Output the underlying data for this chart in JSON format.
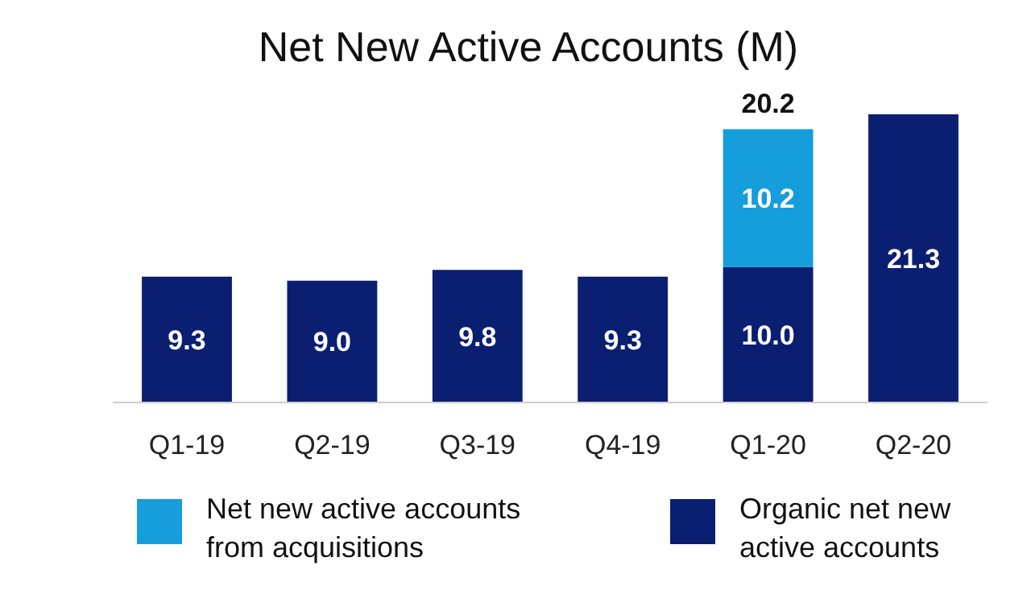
{
  "chart_data": {
    "type": "bar",
    "title": "Net New Active Accounts (M)",
    "categories": [
      "Q1-19",
      "Q2-19",
      "Q3-19",
      "Q4-19",
      "Q1-20",
      "Q2-20"
    ],
    "stacked": true,
    "series": [
      {
        "name": "Organic net new active accounts",
        "color": "#0b1f72",
        "values": [
          9.3,
          9.0,
          9.8,
          9.3,
          10.0,
          21.3
        ],
        "value_labels": [
          "9.3",
          "9.0",
          "9.8",
          "9.3",
          "10.0",
          "21.3"
        ]
      },
      {
        "name": "Net new active accounts from acquisitions",
        "color": "#169ddb",
        "values": [
          null,
          null,
          null,
          null,
          10.2,
          null
        ],
        "value_labels": [
          null,
          null,
          null,
          null,
          "10.2",
          null
        ]
      }
    ],
    "totals": [
      null,
      null,
      null,
      null,
      "20.2",
      null
    ],
    "legend": "bottom"
  }
}
